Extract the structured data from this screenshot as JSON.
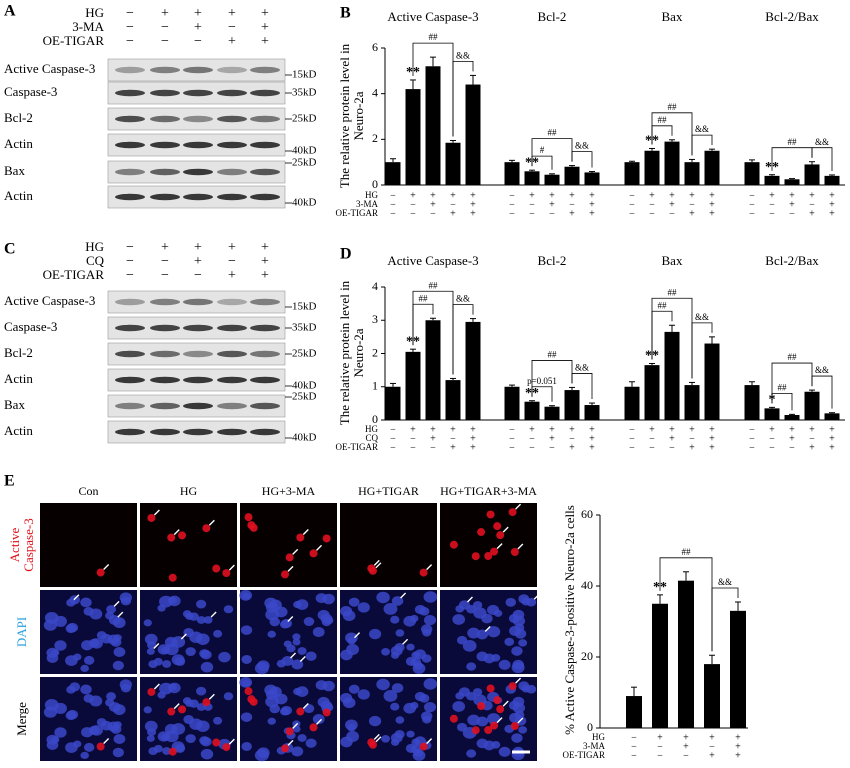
{
  "panels": {
    "A": {
      "label": "A",
      "conditions": [
        "HG",
        "3-MA",
        "OE-TIGAR"
      ],
      "signs": [
        [
          "−",
          "+",
          "+",
          "+",
          "+"
        ],
        [
          "−",
          "−",
          "+",
          "−",
          "+"
        ],
        [
          "−",
          "−",
          "−",
          "+",
          "+"
        ]
      ],
      "rows": [
        "Active Caspase-3",
        "Caspase-3",
        "Bcl-2",
        "Actin",
        "Bax",
        "Actin"
      ],
      "sizes": [
        "15kD",
        "35kD",
        "25kD",
        "40kD",
        "25kD",
        "40kD"
      ]
    },
    "C": {
      "label": "C",
      "conditions": [
        "HG",
        "CQ",
        "OE-TIGAR"
      ],
      "signs": [
        [
          "−",
          "+",
          "+",
          "+",
          "+"
        ],
        [
          "−",
          "−",
          "+",
          "−",
          "+"
        ],
        [
          "−",
          "−",
          "−",
          "+",
          "+"
        ]
      ],
      "rows": [
        "Active Caspase-3",
        "Caspase-3",
        "Bcl-2",
        "Actin",
        "Bax",
        "Actin"
      ],
      "sizes": [
        "15kD",
        "35kD",
        "25kD",
        "40kD",
        "25kD",
        "40kD"
      ]
    },
    "E": {
      "label": "E",
      "columns": [
        "Con",
        "HG",
        "HG+3-MA",
        "HG+TIGAR",
        "HG+TIGAR+3-MA"
      ],
      "rows": [
        "Active Caspase-3",
        "DAPI",
        "Merge"
      ]
    }
  },
  "chart_data": [
    {
      "type": "bar",
      "label": "B",
      "ylabel": "The relative protein level in Neuro-2a",
      "ylim": [
        0,
        6
      ],
      "yticks": [
        0,
        2,
        4,
        6
      ],
      "color": "#000000",
      "conditions": [
        "HG",
        "3-MA",
        "OE-TIGAR"
      ],
      "signs": [
        [
          "−",
          "+",
          "+",
          "+",
          "+"
        ],
        [
          "−",
          "−",
          "+",
          "−",
          "+"
        ],
        [
          "−",
          "−",
          "−",
          "+",
          "+"
        ]
      ],
      "subcharts": [
        {
          "title": "Active Caspase-3",
          "values": [
            1.0,
            4.2,
            5.2,
            1.85,
            4.4
          ],
          "errors": [
            0.15,
            0.4,
            0.4,
            0.1,
            0.4
          ],
          "annotations": [
            "**",
            "##",
            "&&"
          ]
        },
        {
          "title": "Bcl-2",
          "values": [
            1.0,
            0.6,
            0.45,
            0.8,
            0.55
          ],
          "errors": [
            0.08,
            0.05,
            0.04,
            0.05,
            0.04
          ],
          "annotations": [
            "**",
            "#",
            "##",
            "&&"
          ]
        },
        {
          "title": "Bax",
          "values": [
            1.0,
            1.5,
            1.9,
            1.0,
            1.5
          ],
          "errors": [
            0.04,
            0.1,
            0.08,
            0.12,
            0.07
          ],
          "annotations": [
            "**",
            "##",
            "##",
            "&&"
          ]
        },
        {
          "title": "Bcl-2/Bax",
          "values": [
            1.0,
            0.4,
            0.25,
            0.9,
            0.4
          ],
          "errors": [
            0.1,
            0.05,
            0.03,
            0.12,
            0.04
          ],
          "annotations": [
            "**",
            "##",
            "&&"
          ]
        }
      ]
    },
    {
      "type": "bar",
      "label": "D",
      "ylabel": "The relative protein level in Neuro-2a",
      "ylim": [
        0,
        4
      ],
      "yticks": [
        0,
        1,
        2,
        3,
        4
      ],
      "color": "#000000",
      "conditions": [
        "HG",
        "CQ",
        "OE-TIGAR"
      ],
      "signs": [
        [
          "−",
          "+",
          "+",
          "+",
          "+"
        ],
        [
          "−",
          "−",
          "+",
          "−",
          "+"
        ],
        [
          "−",
          "−",
          "−",
          "+",
          "+"
        ]
      ],
      "subcharts": [
        {
          "title": "Active Caspase-3",
          "values": [
            1.0,
            2.05,
            3.0,
            1.2,
            2.95
          ],
          "errors": [
            0.1,
            0.08,
            0.06,
            0.05,
            0.1
          ],
          "annotations": [
            "**",
            "##",
            "##",
            "&&"
          ]
        },
        {
          "title": "Bcl-2",
          "values": [
            1.0,
            0.55,
            0.4,
            0.9,
            0.45
          ],
          "errors": [
            0.05,
            0.03,
            0.03,
            0.08,
            0.06
          ],
          "annotations": [
            "**",
            "p=0.051",
            "##",
            "&&"
          ]
        },
        {
          "title": "Bax",
          "values": [
            1.0,
            1.65,
            2.65,
            1.05,
            2.3
          ],
          "errors": [
            0.15,
            0.05,
            0.2,
            0.08,
            0.2
          ],
          "annotations": [
            "**",
            "##",
            "##",
            "&&"
          ]
        },
        {
          "title": "Bcl-2/Bax",
          "values": [
            1.05,
            0.35,
            0.15,
            0.85,
            0.2
          ],
          "errors": [
            0.1,
            0.03,
            0.02,
            0.05,
            0.02
          ],
          "annotations": [
            "*",
            "##",
            "##",
            "&&"
          ]
        }
      ]
    },
    {
      "type": "bar",
      "ylabel": "% Active Caspase-3-positive Neuro-2a cells",
      "ylim": [
        0,
        60
      ],
      "yticks": [
        0,
        20,
        40,
        60
      ],
      "color": "#000000",
      "conditions": [
        "HG",
        "3-MA",
        "OE-TIGAR"
      ],
      "signs": [
        [
          "−",
          "+",
          "+",
          "+",
          "+"
        ],
        [
          "−",
          "−",
          "+",
          "−",
          "+"
        ],
        [
          "−",
          "−",
          "−",
          "+",
          "+"
        ]
      ],
      "subcharts": [
        {
          "values": [
            9,
            35,
            41.5,
            18,
            33
          ],
          "errors": [
            2.5,
            2.5,
            2.5,
            2.5,
            2.5
          ],
          "annotations": [
            "**",
            "##",
            "&&"
          ]
        }
      ]
    }
  ]
}
